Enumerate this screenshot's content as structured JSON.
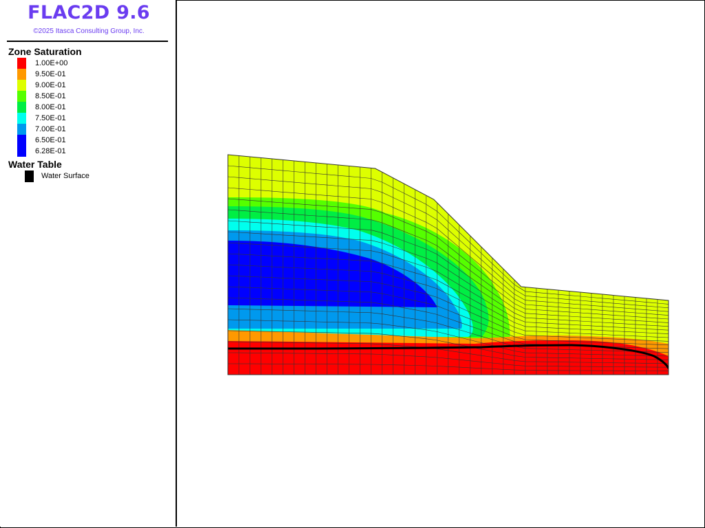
{
  "app": {
    "title": "FLAC2D 9.6",
    "copyright": "©2025 Itasca Consulting Group, Inc."
  },
  "legend": {
    "saturation_title": "Zone Saturation",
    "saturation_levels": [
      {
        "label": "1.00E+00",
        "color": "#ff0000"
      },
      {
        "label": "9.50E-01",
        "color": "#ff9900"
      },
      {
        "label": "9.00E-01",
        "color": "#ddff00"
      },
      {
        "label": "8.50E-01",
        "color": "#55ff00"
      },
      {
        "label": "8.00E-01",
        "color": "#00ee44"
      },
      {
        "label": "7.50E-01",
        "color": "#00ffee"
      },
      {
        "label": "7.00E-01",
        "color": "#0099ee"
      },
      {
        "label": "6.50E-01",
        "color": "#0000ff"
      },
      {
        "label": "6.28E-01",
        "color": "#0000ff"
      }
    ],
    "water_table_title": "Water Table",
    "water_table_item": {
      "label": "Water Surface",
      "color": "#000000"
    }
  },
  "colors": {
    "accent": "#6a3cf0",
    "grid_line": "#333333",
    "water_surface": "#000000"
  }
}
